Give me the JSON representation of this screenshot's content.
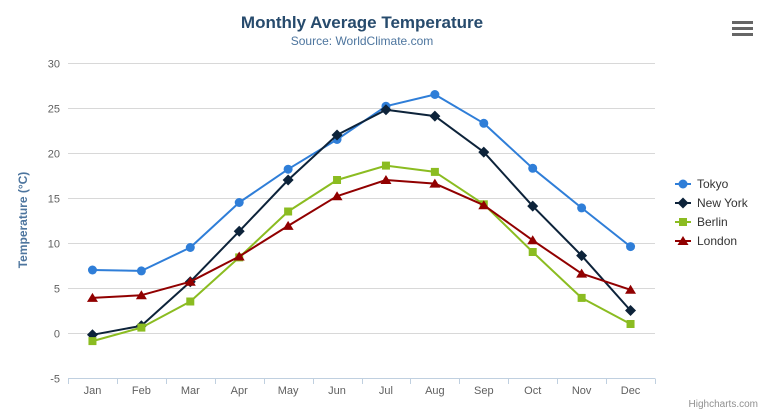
{
  "chart": {
    "title": "Monthly Average Temperature",
    "subtitle": "Source: WorldClimate.com"
  },
  "credits": {
    "label": "Highcharts.com"
  },
  "chart_data": {
    "type": "line",
    "title": "Monthly Average Temperature",
    "subtitle": "Source: WorldClimate.com",
    "categories": [
      "Jan",
      "Feb",
      "Mar",
      "Apr",
      "May",
      "Jun",
      "Jul",
      "Aug",
      "Sep",
      "Oct",
      "Nov",
      "Dec"
    ],
    "xlabel": "",
    "ylabel": "Temperature (°C)",
    "ylim": [
      -5,
      30
    ],
    "ytick_interval": 5,
    "grid": true,
    "legend_position": "right",
    "series": [
      {
        "name": "Tokyo",
        "color": "#2f7ed8",
        "marker": "circle",
        "values": [
          7.0,
          6.9,
          9.5,
          14.5,
          18.2,
          21.5,
          25.2,
          26.5,
          23.3,
          18.3,
          13.9,
          9.6
        ]
      },
      {
        "name": "New York",
        "color": "#0d233a",
        "marker": "diamond",
        "values": [
          -0.2,
          0.8,
          5.7,
          11.3,
          17.0,
          22.0,
          24.8,
          24.1,
          20.1,
          14.1,
          8.6,
          2.5
        ]
      },
      {
        "name": "Berlin",
        "color": "#8bbc21",
        "marker": "square",
        "values": [
          -0.9,
          0.6,
          3.5,
          8.4,
          13.5,
          17.0,
          18.6,
          17.9,
          14.3,
          9.0,
          3.9,
          1.0
        ]
      },
      {
        "name": "London",
        "color": "#910000",
        "marker": "triangle",
        "values": [
          3.9,
          4.2,
          5.7,
          8.5,
          11.9,
          15.2,
          17.0,
          16.6,
          14.2,
          10.3,
          6.6,
          4.8
        ]
      }
    ]
  }
}
